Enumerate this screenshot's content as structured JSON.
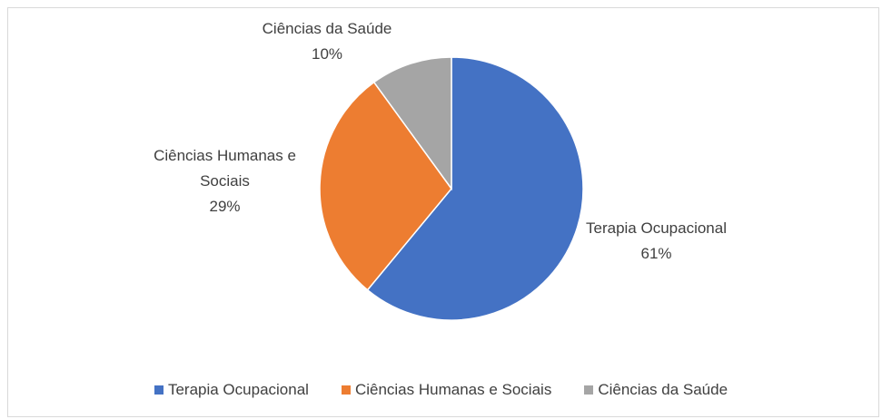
{
  "chart_data": {
    "type": "pie",
    "categories": [
      "Terapia Ocupacional",
      "Ciências Humanas e Sociais",
      "Ciências da Saúde"
    ],
    "values": [
      61,
      29,
      10
    ],
    "value_labels": [
      "61%",
      "29%",
      "10%"
    ],
    "colors": [
      "#4472c4",
      "#ed7d31",
      "#a5a5a5"
    ],
    "legend": "bottom"
  }
}
